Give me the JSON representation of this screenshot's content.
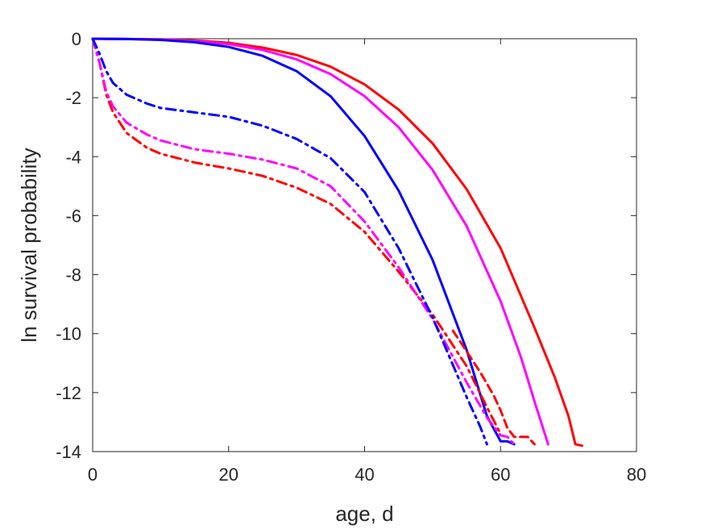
{
  "chart_data": {
    "type": "line",
    "title": "",
    "xlabel": "age, d",
    "ylabel": "ln survival probability",
    "xlim": [
      0,
      80
    ],
    "ylim": [
      -14,
      0
    ],
    "xticks": [
      0,
      20,
      40,
      60,
      80
    ],
    "yticks": [
      0,
      -2,
      -4,
      -6,
      -8,
      -10,
      -12,
      -14
    ],
    "grid": false,
    "legend": "none",
    "series": [
      {
        "color": "#ff0000",
        "style": "solid",
        "x": [
          0,
          5,
          10,
          15,
          20,
          25,
          30,
          35,
          40,
          45,
          50,
          55,
          60,
          65,
          68,
          70,
          71,
          72
        ],
        "y": [
          0,
          -0.01,
          -0.02,
          -0.06,
          -0.14,
          -0.3,
          -0.55,
          -0.95,
          -1.55,
          -2.4,
          -3.55,
          -5.1,
          -7.1,
          -9.8,
          -11.5,
          -12.8,
          -13.75,
          -13.8
        ]
      },
      {
        "color": "#ff00ff",
        "style": "solid",
        "x": [
          0,
          5,
          10,
          15,
          20,
          25,
          30,
          35,
          40,
          45,
          50,
          55,
          60,
          63,
          65,
          67
        ],
        "y": [
          0,
          -0.01,
          -0.03,
          -0.08,
          -0.18,
          -0.38,
          -0.7,
          -1.2,
          -1.95,
          -3.0,
          -4.45,
          -6.35,
          -8.9,
          -10.8,
          -12.3,
          -13.75
        ]
      },
      {
        "color": "#0000ff",
        "style": "solid",
        "x": [
          0,
          5,
          10,
          15,
          20,
          25,
          30,
          35,
          40,
          45,
          50,
          55,
          58,
          60,
          61,
          62
        ],
        "y": [
          0,
          -0.01,
          -0.04,
          -0.12,
          -0.28,
          -0.58,
          -1.1,
          -1.95,
          -3.3,
          -5.15,
          -7.5,
          -10.55,
          -12.8,
          -13.65,
          -13.65,
          -13.75
        ]
      },
      {
        "color": "#ff0000",
        "style": "dashdot",
        "x": [
          0,
          1,
          2,
          3,
          5,
          8,
          10,
          15,
          20,
          25,
          30,
          35,
          40,
          45,
          50,
          55,
          58,
          60
        ],
        "y": [
          0,
          -0.8,
          -1.9,
          -2.5,
          -3.2,
          -3.7,
          -3.9,
          -4.2,
          -4.4,
          -4.65,
          -5.05,
          -5.6,
          -6.55,
          -7.9,
          -9.35,
          -11.1,
          -12.5,
          -13.4
        ]
      },
      {
        "color": "#ff0000",
        "style": "dashed",
        "x": [
          53,
          55,
          57,
          59,
          60,
          61,
          62,
          63,
          64,
          65
        ],
        "y": [
          -9.9,
          -10.6,
          -11.3,
          -12.1,
          -12.6,
          -13.2,
          -13.5,
          -13.5,
          -13.5,
          -13.75
        ]
      },
      {
        "color": "#ff00ff",
        "style": "dashdot",
        "x": [
          0,
          1,
          2,
          3,
          5,
          8,
          10,
          15,
          20,
          25,
          30,
          35,
          40,
          45,
          50,
          55,
          58,
          60,
          61,
          62
        ],
        "y": [
          0,
          -0.8,
          -1.8,
          -2.3,
          -2.85,
          -3.25,
          -3.45,
          -3.75,
          -3.9,
          -4.1,
          -4.4,
          -5.0,
          -6.2,
          -7.75,
          -9.5,
          -11.65,
          -12.85,
          -13.45,
          -13.5,
          -13.75
        ]
      },
      {
        "color": "#0000ff",
        "style": "dashdot",
        "x": [
          0,
          1,
          2,
          3,
          5,
          8,
          10,
          15,
          20,
          25,
          30,
          35,
          40,
          45,
          50,
          55,
          57,
          58
        ],
        "y": [
          0,
          -0.5,
          -1.1,
          -1.5,
          -1.9,
          -2.2,
          -2.35,
          -2.5,
          -2.65,
          -2.95,
          -3.4,
          -4.05,
          -5.2,
          -7.1,
          -9.45,
          -12.15,
          -13.15,
          -13.75
        ]
      }
    ]
  }
}
